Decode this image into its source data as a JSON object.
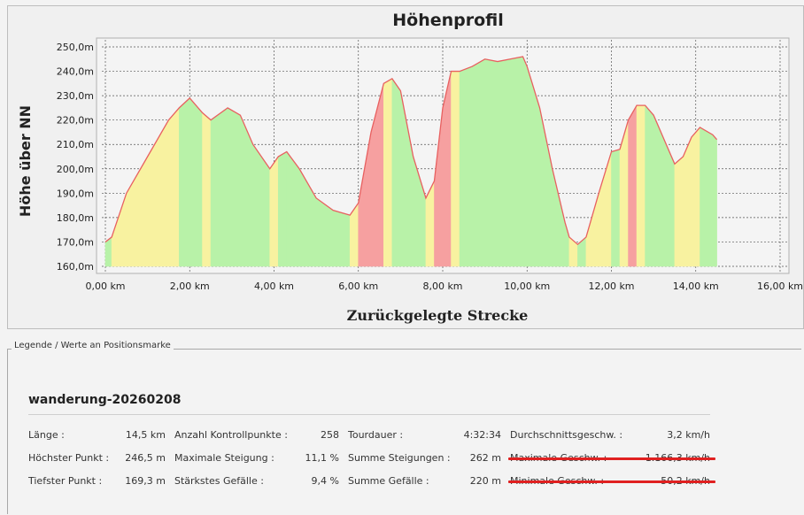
{
  "legend": {
    "caption": "Legende / Werte an Positionsmarke",
    "track_name": "wanderung-20260208",
    "rows": [
      [
        {
          "label": "Länge :",
          "value": "14,5 km"
        },
        {
          "label": "Anzahl Kontrollpunkte :",
          "value": "258"
        },
        {
          "label": "Tourdauer :",
          "value": "4:32:34"
        },
        {
          "label": "Durchschnittsgeschw. :",
          "value": "3,2 km/h"
        }
      ],
      [
        {
          "label": "Höchster Punkt :",
          "value": "246,5 m"
        },
        {
          "label": "Maximale Steigung :",
          "value": "11,1 %"
        },
        {
          "label": "Summe Steigungen :",
          "value": "262 m"
        },
        {
          "label": "Maximale Geschw. :",
          "value": "1.166,3 km/h",
          "struck": true
        }
      ],
      [
        {
          "label": "Tiefster Punkt :",
          "value": "169,3 m"
        },
        {
          "label": "Stärkstes Gefälle :",
          "value": "9,4 %"
        },
        {
          "label": "Summe Gefälle :",
          "value": "220 m"
        },
        {
          "label": "Minimale Geschw. :",
          "value": "50,2 km/h",
          "struck": true
        }
      ]
    ]
  },
  "chart_data": {
    "type": "area",
    "title": "Höhenprofil",
    "xlabel": "Zurückgelegte Strecke",
    "ylabel": "Höhe über NN",
    "xlim": [
      0,
      16
    ],
    "ylim": [
      160,
      250
    ],
    "x_ticks": [
      0,
      2,
      4,
      6,
      8,
      10,
      12,
      14,
      16
    ],
    "x_tick_labels": [
      "0,00 km",
      "2,00 km",
      "4,00 km",
      "6,00 km",
      "8,00 km",
      "10,00 km",
      "12,00 km",
      "14,00 km",
      "16,00 km"
    ],
    "y_ticks": [
      160,
      170,
      180,
      190,
      200,
      210,
      220,
      230,
      240,
      250
    ],
    "y_tick_labels": [
      "160,0m",
      "170,0m",
      "180,0m",
      "190,0m",
      "200,0m",
      "210,0m",
      "220,0m",
      "230,0m",
      "240,0m",
      "250,0m"
    ],
    "grid": true,
    "line_color": "#e86060",
    "fill_colors": {
      "flat": "#b8f2a8",
      "moderate": "#f8f2a0",
      "steep": "#f6a0a0"
    },
    "series": [
      {
        "x": [
          0,
          0.15,
          0.5,
          1.0,
          1.5,
          1.75,
          2.0,
          2.3,
          2.5,
          2.9,
          3.2,
          3.5,
          3.9,
          4.1,
          4.3,
          4.6,
          5.0,
          5.4,
          5.8,
          6.0,
          6.3,
          6.6,
          6.8,
          7.0,
          7.3,
          7.6,
          7.8,
          8.0,
          8.2,
          8.4,
          8.7,
          9.0,
          9.3,
          9.6,
          9.9,
          10.0,
          10.3,
          10.6,
          10.9,
          11.0,
          11.2,
          11.4,
          11.7,
          12.0,
          12.2,
          12.4,
          12.6,
          12.8,
          13.0,
          13.3,
          13.5,
          13.7,
          13.9,
          14.1,
          14.4,
          14.5
        ],
        "y": [
          170,
          172,
          190,
          205,
          220,
          225,
          229,
          223,
          220,
          225,
          222,
          210,
          200,
          205,
          207,
          200,
          188,
          183,
          181,
          186,
          215,
          235,
          237,
          232,
          205,
          188,
          195,
          225,
          240,
          240,
          242,
          245,
          244,
          245,
          246,
          242,
          225,
          200,
          178,
          172,
          169,
          172,
          190,
          207,
          208,
          220,
          226,
          226,
          222,
          210,
          202,
          205,
          213,
          217,
          214,
          212
        ],
        "grade": [
          "flat",
          "moderate",
          "moderate",
          "moderate",
          "moderate",
          "flat",
          "flat",
          "moderate",
          "flat",
          "flat",
          "flat",
          "flat",
          "moderate",
          "flat",
          "flat",
          "flat",
          "flat",
          "flat",
          "moderate",
          "steep",
          "steep",
          "moderate",
          "flat",
          "flat",
          "flat",
          "moderate",
          "steep",
          "steep",
          "moderate",
          "flat",
          "flat",
          "flat",
          "flat",
          "flat",
          "flat",
          "flat",
          "flat",
          "flat",
          "flat",
          "moderate",
          "flat",
          "moderate",
          "moderate",
          "flat",
          "moderate",
          "steep",
          "moderate",
          "flat",
          "flat",
          "flat",
          "moderate",
          "moderate",
          "moderate",
          "flat",
          "flat"
        ]
      }
    ]
  }
}
